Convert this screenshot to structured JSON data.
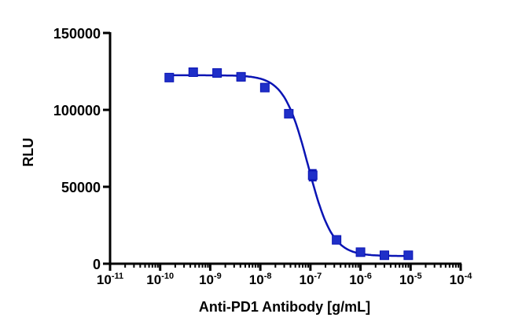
{
  "chart_data": {
    "type": "scatter",
    "title": "",
    "xlabel": "Anti-PD1 Antibody [g/mL]",
    "ylabel": "RLU",
    "x_scale": "log",
    "xlim": [
      1e-11,
      0.0001
    ],
    "ylim": [
      0,
      150000
    ],
    "y_ticks": [
      "0",
      "50000",
      "100000",
      "150000"
    ],
    "x_ticks": [
      {
        "base": "10",
        "exp": "-11"
      },
      {
        "base": "10",
        "exp": "-10"
      },
      {
        "base": "10",
        "exp": "-9"
      },
      {
        "base": "10",
        "exp": "-8"
      },
      {
        "base": "10",
        "exp": "-7"
      },
      {
        "base": "10",
        "exp": "-6"
      },
      {
        "base": "10",
        "exp": "-5"
      },
      {
        "base": "10",
        "exp": "-4"
      }
    ],
    "grid": false,
    "series_color": "#1f2fc8",
    "series": [
      {
        "points": [
          {
            "x": 1.52e-10,
            "y": 121000
          },
          {
            "x": 4.57e-10,
            "y": 124500
          },
          {
            "x": 1.37e-09,
            "y": 124000
          },
          {
            "x": 4.12e-09,
            "y": 121500
          },
          {
            "x": 1.23e-08,
            "y": 114500
          },
          {
            "x": 3.7e-08,
            "y": 97500
          },
          {
            "x": 1.11e-07,
            "y": 57500
          },
          {
            "x": 3.33e-07,
            "y": 15500
          },
          {
            "x": 1e-06,
            "y": 7500
          },
          {
            "x": 3e-06,
            "y": 5500
          },
          {
            "x": 9e-06,
            "y": 5500
          }
        ],
        "error": [
          1500,
          1200,
          2500,
          2500,
          1500,
          1500,
          3500,
          1000,
          800,
          600,
          600
        ],
        "fit": {
          "model": "4PL",
          "top": 122500,
          "bottom": 5000,
          "ec50": 9e-08,
          "hill": 1.8
        }
      }
    ]
  }
}
